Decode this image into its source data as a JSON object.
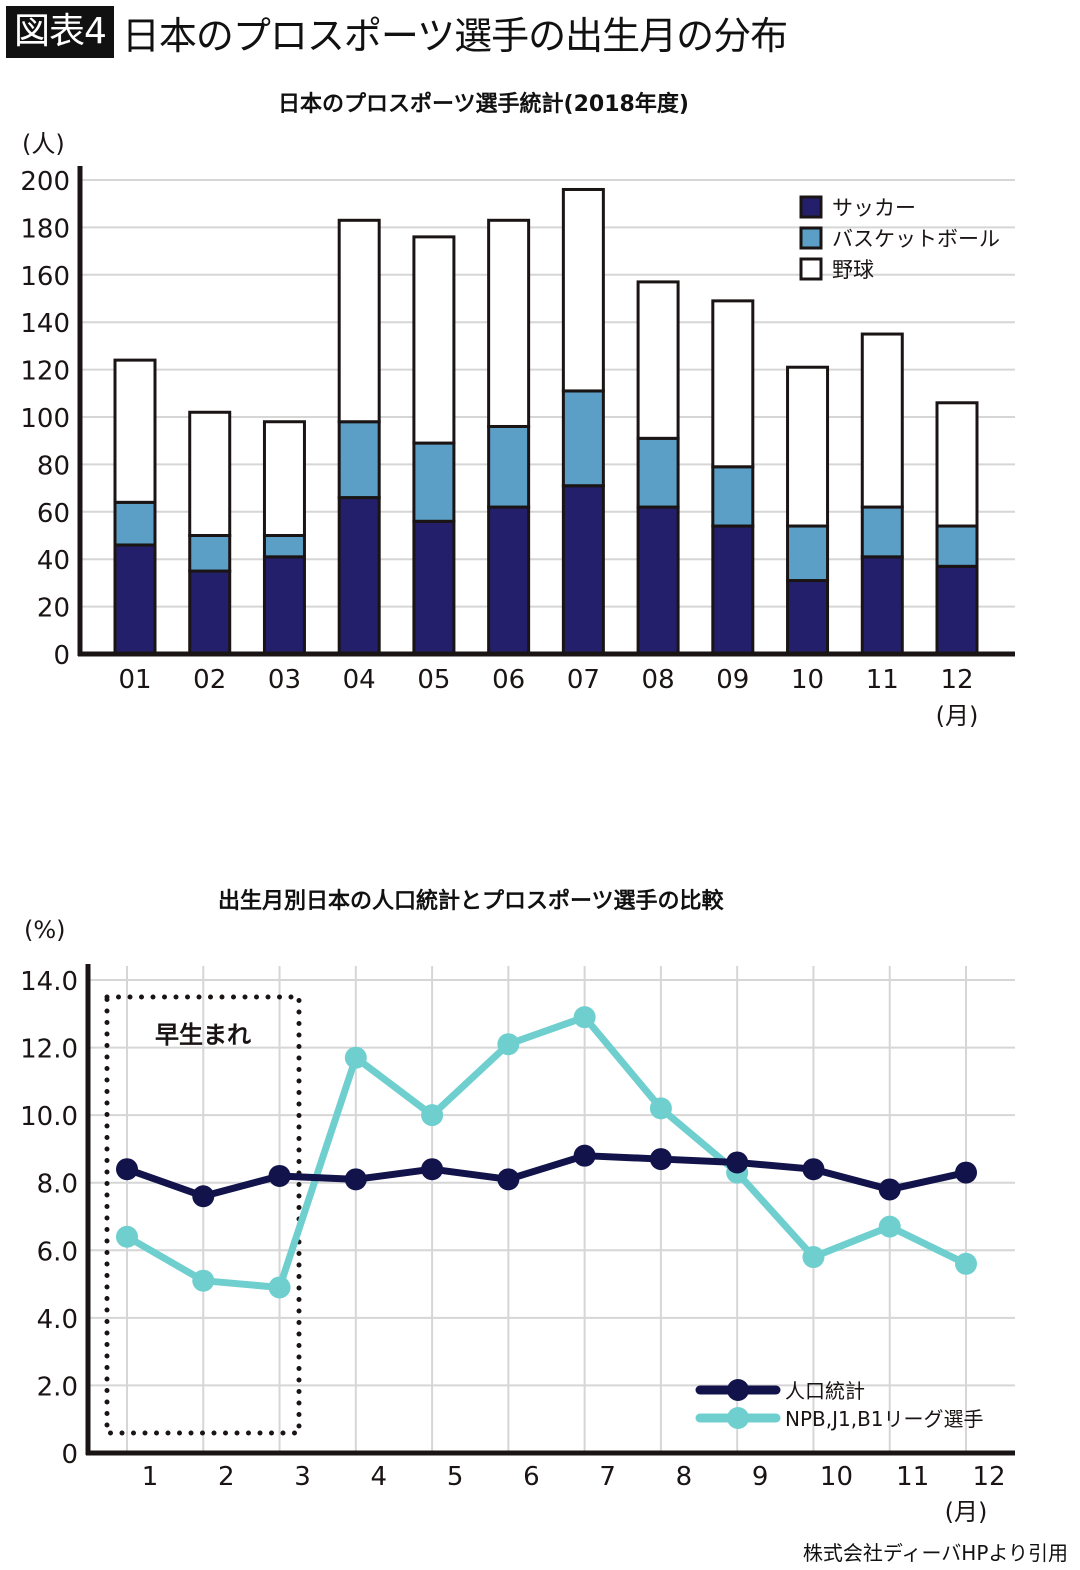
{
  "header": {
    "badge": "図表4",
    "title": "日本のプロスポーツ選手の出生月の分布"
  },
  "credit": "株式会社ディーバHPより引用",
  "chart_data": [
    {
      "type": "bar",
      "stacked": true,
      "title": "日本のプロスポーツ選手統計(2018年度)",
      "ylabel": "(人)",
      "xlabel": "(月)",
      "ylim": [
        0,
        200
      ],
      "yticks": [
        "0",
        "20",
        "40",
        "60",
        "80",
        "100",
        "120",
        "140",
        "160",
        "180",
        "200"
      ],
      "grid": true,
      "legend_position": "top-right",
      "categories": [
        "01",
        "02",
        "03",
        "04",
        "05",
        "06",
        "07",
        "08",
        "09",
        "10",
        "11",
        "12"
      ],
      "series": [
        {
          "name": "サッカー",
          "color": "#231f6b",
          "values": [
            46,
            35,
            41,
            66,
            56,
            62,
            71,
            62,
            54,
            31,
            41,
            37
          ]
        },
        {
          "name": "バスケットボール",
          "color": "#5b9ec6",
          "values": [
            18,
            15,
            9,
            32,
            33,
            34,
            40,
            29,
            25,
            23,
            21,
            17
          ]
        },
        {
          "name": "野球",
          "color": "#ffffff",
          "values": [
            60,
            52,
            48,
            85,
            87,
            87,
            85,
            66,
            70,
            67,
            73,
            52
          ]
        }
      ],
      "totals": [
        124,
        102,
        98,
        183,
        176,
        183,
        196,
        157,
        149,
        121,
        135,
        106
      ]
    },
    {
      "type": "line",
      "title": "出生月別日本の人口統計とプロスポーツ選手の比較",
      "ylabel": "(%)",
      "xlabel": "(月)",
      "ylim": [
        0,
        14
      ],
      "yticks": [
        "0",
        "2.0",
        "4.0",
        "6.0",
        "8.0",
        "10.0",
        "12.0",
        "14.0"
      ],
      "grid": true,
      "legend_position": "bottom-right",
      "x": [
        "1",
        "2",
        "3",
        "4",
        "5",
        "6",
        "7",
        "8",
        "9",
        "10",
        "11",
        "12"
      ],
      "series": [
        {
          "name": "人口統計",
          "color": "#12134a",
          "values": [
            8.4,
            7.6,
            8.2,
            8.1,
            8.4,
            8.1,
            8.8,
            8.7,
            8.6,
            8.4,
            7.8,
            8.3
          ]
        },
        {
          "name": "NPB,J1,B1リーグ選手",
          "color": "#6fcfcf",
          "values": [
            6.4,
            5.1,
            4.9,
            11.7,
            10.0,
            12.1,
            12.9,
            10.2,
            8.3,
            5.8,
            6.7,
            5.6
          ]
        }
      ],
      "annotation": {
        "label": "早生まれ",
        "months": [
          "1",
          "2",
          "3"
        ]
      }
    }
  ]
}
